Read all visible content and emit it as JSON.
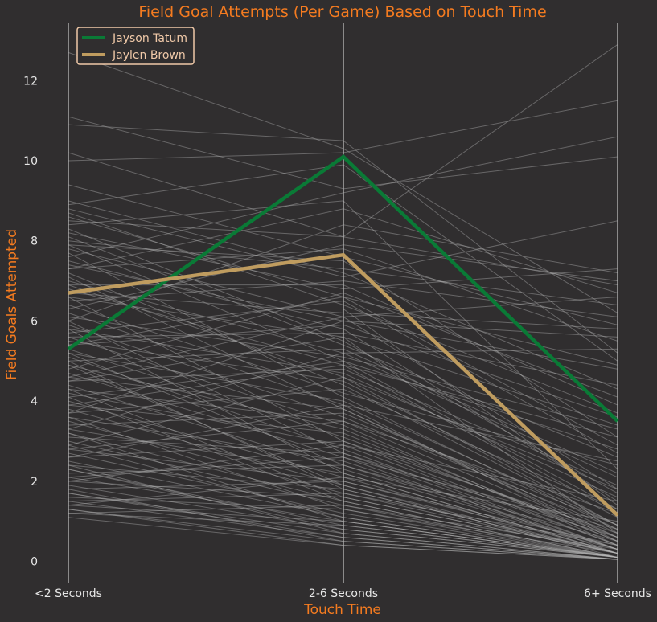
{
  "chart_data": {
    "type": "line",
    "title": "Field Goal Attempts (Per Game) Based on Touch Time",
    "xlabel": "Touch Time",
    "ylabel": "Field Goals Attempted",
    "categories": [
      "<2 Seconds",
      "2-6 Seconds",
      "6+ Seconds"
    ],
    "yticks": [
      "0",
      "2",
      "4",
      "6",
      "8",
      "10",
      "12"
    ],
    "ylim": [
      -0.55,
      13.45
    ],
    "grid": false,
    "legend_position": "top-left",
    "background_color": "#302e2f",
    "background_line_color": "#b4b4b4",
    "series": [
      {
        "name": "Jayson Tatum",
        "color": "#0a7a36",
        "values": [
          5.3,
          10.1,
          3.5
        ]
      },
      {
        "name": "Jaylen Brown",
        "color": "#bf9c5f",
        "values": [
          6.7,
          7.65,
          1.15
        ]
      }
    ],
    "background_series": [
      [
        12.7,
        10.3,
        6.2
      ],
      [
        11.1,
        9.3,
        10.1
      ],
      [
        10.9,
        10.5,
        5.2
      ],
      [
        10.2,
        8.1,
        12.9
      ],
      [
        10.0,
        10.2,
        11.5
      ],
      [
        9.0,
        7.2,
        4.3
      ],
      [
        8.9,
        9.9,
        5.0
      ],
      [
        8.8,
        7.1,
        8.5
      ],
      [
        8.6,
        6.6,
        2.9
      ],
      [
        8.5,
        8.1,
        6.9
      ],
      [
        8.4,
        9.0,
        2.3
      ],
      [
        8.2,
        6.8,
        7.3
      ],
      [
        8.1,
        5.4,
        2.6
      ],
      [
        8.0,
        7.3,
        6.4
      ],
      [
        7.9,
        7.5,
        3.1
      ],
      [
        7.8,
        6.1,
        1.8
      ],
      [
        7.6,
        9.2,
        10.6
      ],
      [
        7.5,
        5.8,
        1.5
      ],
      [
        7.4,
        6.0,
        4.8
      ],
      [
        7.3,
        7.8,
        5.5
      ],
      [
        7.2,
        4.4,
        0.9
      ],
      [
        7.0,
        5.2,
        2.1
      ],
      [
        6.9,
        6.9,
        3.9
      ],
      [
        6.8,
        4.9,
        1.2
      ],
      [
        6.6,
        5.6,
        0.7
      ],
      [
        6.5,
        7.0,
        6.1
      ],
      [
        6.4,
        4.2,
        2.4
      ],
      [
        6.3,
        6.3,
        1.4
      ],
      [
        6.2,
        3.9,
        0.5
      ],
      [
        6.1,
        5.1,
        3.3
      ],
      [
        6.0,
        8.4,
        7.2
      ],
      [
        5.9,
        3.6,
        0.8
      ],
      [
        5.8,
        4.7,
        1.6
      ],
      [
        5.7,
        6.5,
        2.7
      ],
      [
        5.6,
        3.4,
        0.4
      ],
      [
        5.5,
        4.5,
        1.1
      ],
      [
        5.4,
        5.9,
        3.6
      ],
      [
        5.3,
        3.1,
        0.6
      ],
      [
        5.2,
        4.0,
        0.9
      ],
      [
        5.1,
        2.8,
        0.3
      ],
      [
        5.0,
        5.3,
        2.2
      ],
      [
        4.9,
        3.3,
        0.5
      ],
      [
        4.8,
        6.7,
        4.1
      ],
      [
        4.7,
        2.6,
        0.2
      ],
      [
        4.6,
        3.8,
        0.7
      ],
      [
        4.5,
        4.8,
        1.9
      ],
      [
        4.4,
        2.3,
        0.3
      ],
      [
        4.3,
        3.5,
        0.6
      ],
      [
        4.2,
        2.9,
        0.4
      ],
      [
        4.1,
        5.0,
        2.8
      ],
      [
        4.0,
        2.1,
        0.2
      ],
      [
        3.9,
        3.2,
        0.5
      ],
      [
        3.8,
        1.9,
        0.1
      ],
      [
        3.7,
        4.3,
        1.3
      ],
      [
        3.6,
        2.5,
        0.3
      ],
      [
        3.5,
        1.7,
        0.2
      ],
      [
        3.4,
        3.7,
        0.9
      ],
      [
        3.3,
        2.2,
        0.2
      ],
      [
        3.2,
        1.5,
        0.1
      ],
      [
        3.1,
        2.7,
        0.6
      ],
      [
        3.0,
        1.4,
        0.1
      ],
      [
        2.9,
        4.6,
        1.8
      ],
      [
        2.8,
        2.0,
        0.3
      ],
      [
        2.7,
        1.2,
        0.1
      ],
      [
        2.6,
        3.0,
        0.7
      ],
      [
        2.5,
        1.1,
        0.1
      ],
      [
        2.4,
        1.8,
        0.2
      ],
      [
        2.3,
        0.9,
        0.1
      ],
      [
        2.2,
        2.4,
        0.5
      ],
      [
        2.1,
        1.0,
        0.1
      ],
      [
        2.0,
        1.6,
        0.2
      ],
      [
        1.9,
        0.8,
        0.1
      ],
      [
        1.8,
        2.0,
        0.4
      ],
      [
        1.7,
        0.7,
        0.05
      ],
      [
        1.6,
        1.3,
        0.2
      ],
      [
        1.5,
        0.6,
        0.05
      ],
      [
        1.4,
        1.0,
        0.1
      ],
      [
        1.3,
        0.5,
        0.05
      ],
      [
        1.2,
        0.9,
        0.1
      ],
      [
        1.1,
        0.4,
        0.05
      ],
      [
        8.3,
        5.5,
        1.7
      ],
      [
        7.7,
        4.1,
        0.8
      ],
      [
        7.1,
        3.8,
        0.6
      ],
      [
        6.7,
        6.2,
        5.8
      ],
      [
        6.6,
        3.0,
        0.4
      ],
      [
        6.0,
        2.7,
        0.3
      ],
      [
        5.6,
        5.7,
        4.4
      ],
      [
        5.2,
        2.4,
        0.3
      ],
      [
        4.9,
        1.9,
        0.2
      ],
      [
        4.6,
        6.1,
        6.6
      ],
      [
        4.3,
        1.6,
        0.2
      ],
      [
        3.9,
        4.9,
        3.1
      ],
      [
        3.6,
        1.3,
        0.1
      ],
      [
        3.3,
        5.2,
        5.3
      ],
      [
        2.9,
        1.1,
        0.1
      ],
      [
        2.6,
        3.9,
        2.5
      ],
      [
        2.3,
        0.8,
        0.1
      ],
      [
        2.0,
        2.9,
        1.5
      ],
      [
        1.7,
        0.6,
        0.05
      ],
      [
        1.4,
        2.1,
        1.0
      ],
      [
        9.4,
        7.6,
        5.9
      ],
      [
        8.7,
        6.4,
        3.7
      ],
      [
        7.9,
        5.0,
        1.3
      ],
      [
        7.3,
        8.8,
        6.7
      ],
      [
        6.9,
        4.6,
        0.9
      ],
      [
        6.3,
        7.9,
        7.0
      ],
      [
        5.8,
        2.2,
        0.2
      ],
      [
        5.4,
        6.6,
        4.9
      ],
      [
        5.0,
        1.8,
        0.2
      ],
      [
        4.5,
        5.6,
        3.4
      ],
      [
        4.1,
        1.5,
        0.1
      ],
      [
        3.7,
        6.0,
        5.6
      ],
      [
        3.2,
        1.0,
        0.1
      ],
      [
        2.8,
        3.5,
        1.2
      ],
      [
        2.4,
        0.7,
        0.05
      ],
      [
        2.1,
        2.6,
        0.8
      ],
      [
        1.8,
        0.5,
        0.05
      ],
      [
        1.5,
        1.7,
        0.4
      ],
      [
        1.3,
        0.4,
        0.05
      ],
      [
        1.2,
        1.4,
        0.3
      ]
    ]
  }
}
